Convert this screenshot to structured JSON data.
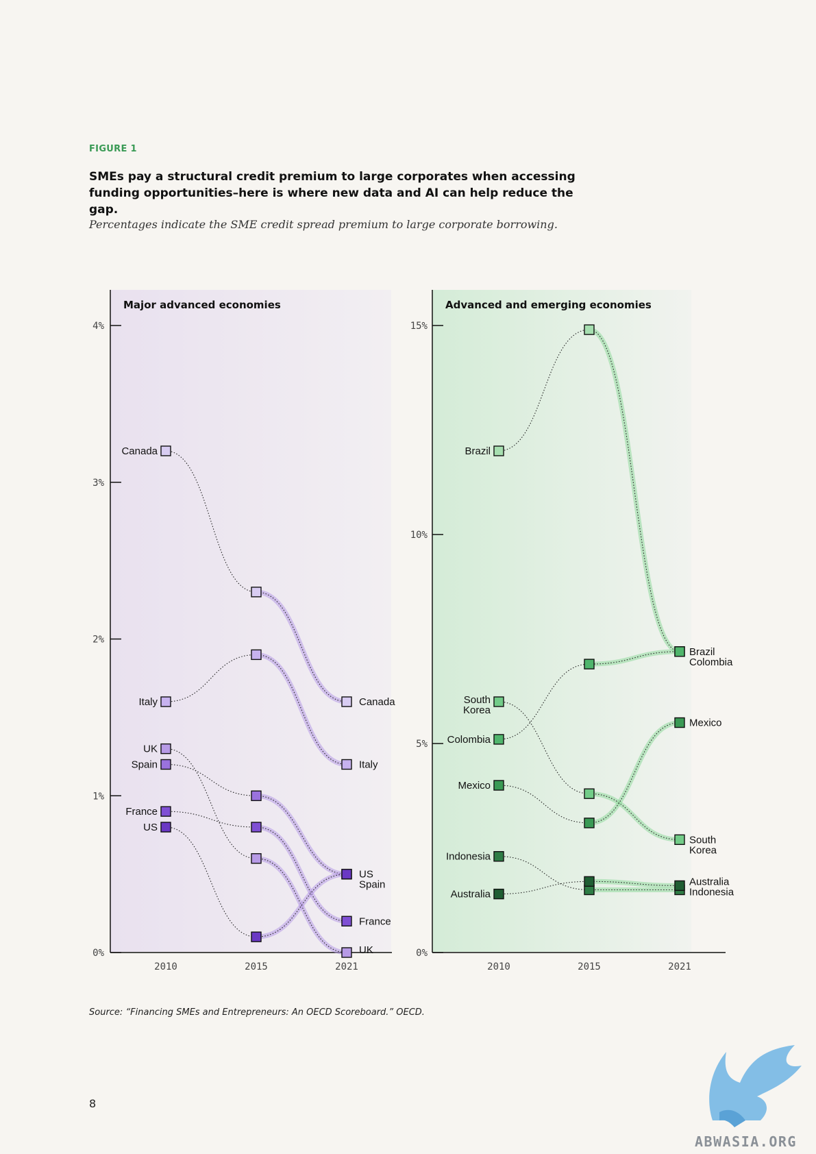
{
  "figure": {
    "label": "FIGURE 1",
    "title": "SMEs pay a structural credit premium to large corporates when accessing funding opportunities–here is where new data and AI can help reduce the gap.",
    "subtitle": "Percentages indicate the SME credit spread premium to large corporate borrowing.",
    "source": "Source: “Financing SMEs and Entrepreneurs: An OECD Scoreboard.” OECD.",
    "page_number": "8"
  },
  "colors": {
    "label_green": "#3a9a55",
    "left_panel_bg": "#ece6ef",
    "right_panel_bg": "#dceedd",
    "purple_glow": "#b79ae6",
    "green_glow": "#8fd99c"
  },
  "watermark": {
    "text": "ABWASIA.ORG",
    "icon": "griffin-icon"
  },
  "chart_data": [
    {
      "type": "line",
      "title": "Major advanced economies",
      "x": [
        "2010",
        "2015",
        "2021"
      ],
      "ylim": [
        0,
        4
      ],
      "yticks": [
        0,
        1,
        2,
        3,
        4
      ],
      "ytick_labels": [
        "0%",
        "1%",
        "2%",
        "3%",
        "4%"
      ],
      "series": [
        {
          "name": "Canada",
          "values": [
            3.2,
            2.3,
            1.6
          ],
          "color": "#d8ccf2",
          "end_label": "Canada"
        },
        {
          "name": "Italy",
          "values": [
            1.6,
            1.9,
            1.2
          ],
          "color": "#c7b2ef",
          "end_label": "Italy"
        },
        {
          "name": "UK",
          "values": [
            1.3,
            0.6,
            0.0
          ],
          "color": "#b79ae6",
          "end_label": "UK"
        },
        {
          "name": "Spain",
          "values": [
            1.2,
            1.0,
            0.5
          ],
          "color": "#9a72de",
          "end_label": ""
        },
        {
          "name": "France",
          "values": [
            0.9,
            0.8,
            0.2
          ],
          "color": "#7f4fd4",
          "end_label": "France"
        },
        {
          "name": "US",
          "values": [
            0.8,
            0.1,
            0.5
          ],
          "color": "#6a38c4",
          "end_label": ""
        }
      ],
      "grouped_end_label": "US\nSpain"
    },
    {
      "type": "line",
      "title": "Advanced and emerging economies",
      "x": [
        "2010",
        "2015",
        "2021"
      ],
      "ylim": [
        0,
        15
      ],
      "yticks": [
        0,
        5,
        10,
        15
      ],
      "ytick_labels": [
        "0%",
        "5%",
        "10%",
        "15%"
      ],
      "series": [
        {
          "name": "Brazil",
          "values": [
            12.0,
            14.9,
            7.2
          ],
          "color": "#a6dfb0",
          "start_label": "Brazil"
        },
        {
          "name": "South Korea",
          "values": [
            6.0,
            3.8,
            2.7
          ],
          "color": "#72cc88",
          "start_label": "South\nKorea",
          "end_label": "South\nKorea"
        },
        {
          "name": "Colombia",
          "values": [
            5.1,
            6.9,
            7.2
          ],
          "color": "#4fb56c",
          "start_label": "Colombia"
        },
        {
          "name": "Mexico",
          "values": [
            4.0,
            3.1,
            5.5
          ],
          "color": "#3a9a55",
          "start_label": "Mexico",
          "end_label": "Mexico"
        },
        {
          "name": "Indonesia",
          "values": [
            2.3,
            1.5,
            1.5
          ],
          "color": "#2e7d45",
          "start_label": "Indonesia"
        },
        {
          "name": "Australia",
          "values": [
            1.4,
            1.7,
            1.6
          ],
          "color": "#1f5e33",
          "start_label": "Australia"
        }
      ],
      "grouped_end_labels": [
        "Brazil\nColombia",
        "Australia\nIndonesia"
      ]
    }
  ]
}
